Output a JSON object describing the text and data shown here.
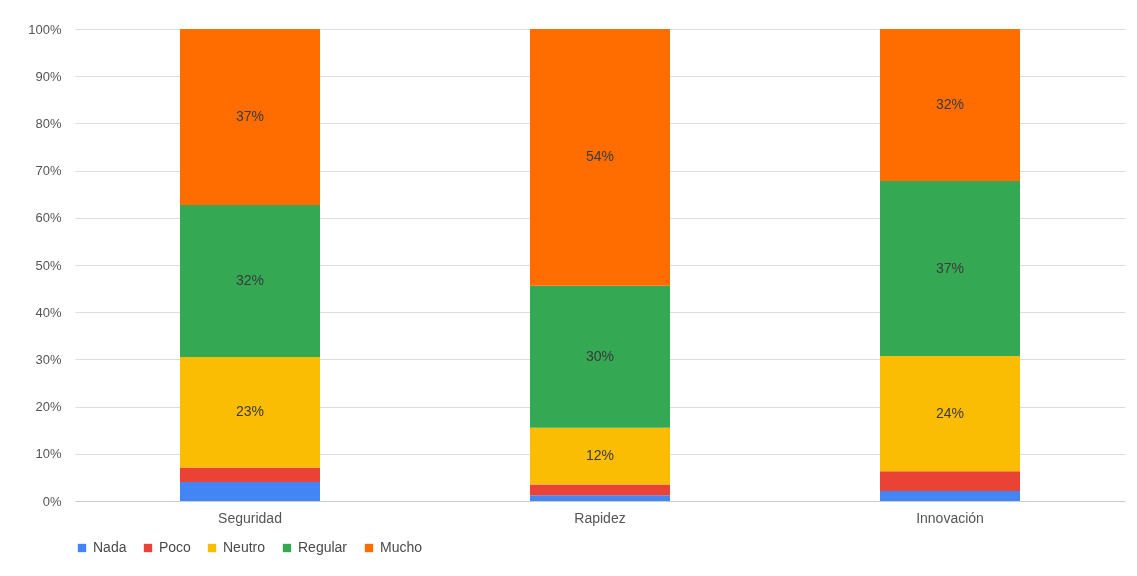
{
  "chart_data": {
    "type": "bar",
    "stacked": true,
    "categories": [
      "Seguridad",
      "Rapidez",
      "Innovación"
    ],
    "series": [
      {
        "name": "Nada",
        "color": "#4285f4",
        "values": [
          4.0,
          1.2,
          2.1
        ]
      },
      {
        "name": "Poco",
        "color": "#ea4335",
        "values": [
          3.1,
          2.3,
          4.2
        ]
      },
      {
        "name": "Neutro",
        "color": "#fbbc04",
        "values": [
          23.4,
          12.0,
          24.4
        ],
        "value_labels": [
          "23%",
          "12%",
          "24%"
        ]
      },
      {
        "name": "Regular",
        "color": "#34a853",
        "values": [
          32.2,
          30.1,
          37.1
        ],
        "value_labels": [
          "32%",
          "30%",
          "37%"
        ]
      },
      {
        "name": "Mucho",
        "color": "#ff6d01",
        "values": [
          37.3,
          54.4,
          32.2
        ],
        "value_labels": [
          "37%",
          "54%",
          "32%"
        ]
      }
    ],
    "ylim": [
      0,
      100
    ],
    "yticks": [
      {
        "value": 0,
        "label": "0%"
      },
      {
        "value": 10,
        "label": "10%"
      },
      {
        "value": 20,
        "label": "20%"
      },
      {
        "value": 30,
        "label": "30%"
      },
      {
        "value": 40,
        "label": "40%"
      },
      {
        "value": 50,
        "label": "50%"
      },
      {
        "value": 60,
        "label": "60%"
      },
      {
        "value": 70,
        "label": "70%"
      },
      {
        "value": 80,
        "label": "80%"
      },
      {
        "value": 90,
        "label": "90%"
      },
      {
        "value": 100,
        "label": "100%"
      }
    ],
    "grid": "y",
    "legend": "bottom"
  }
}
